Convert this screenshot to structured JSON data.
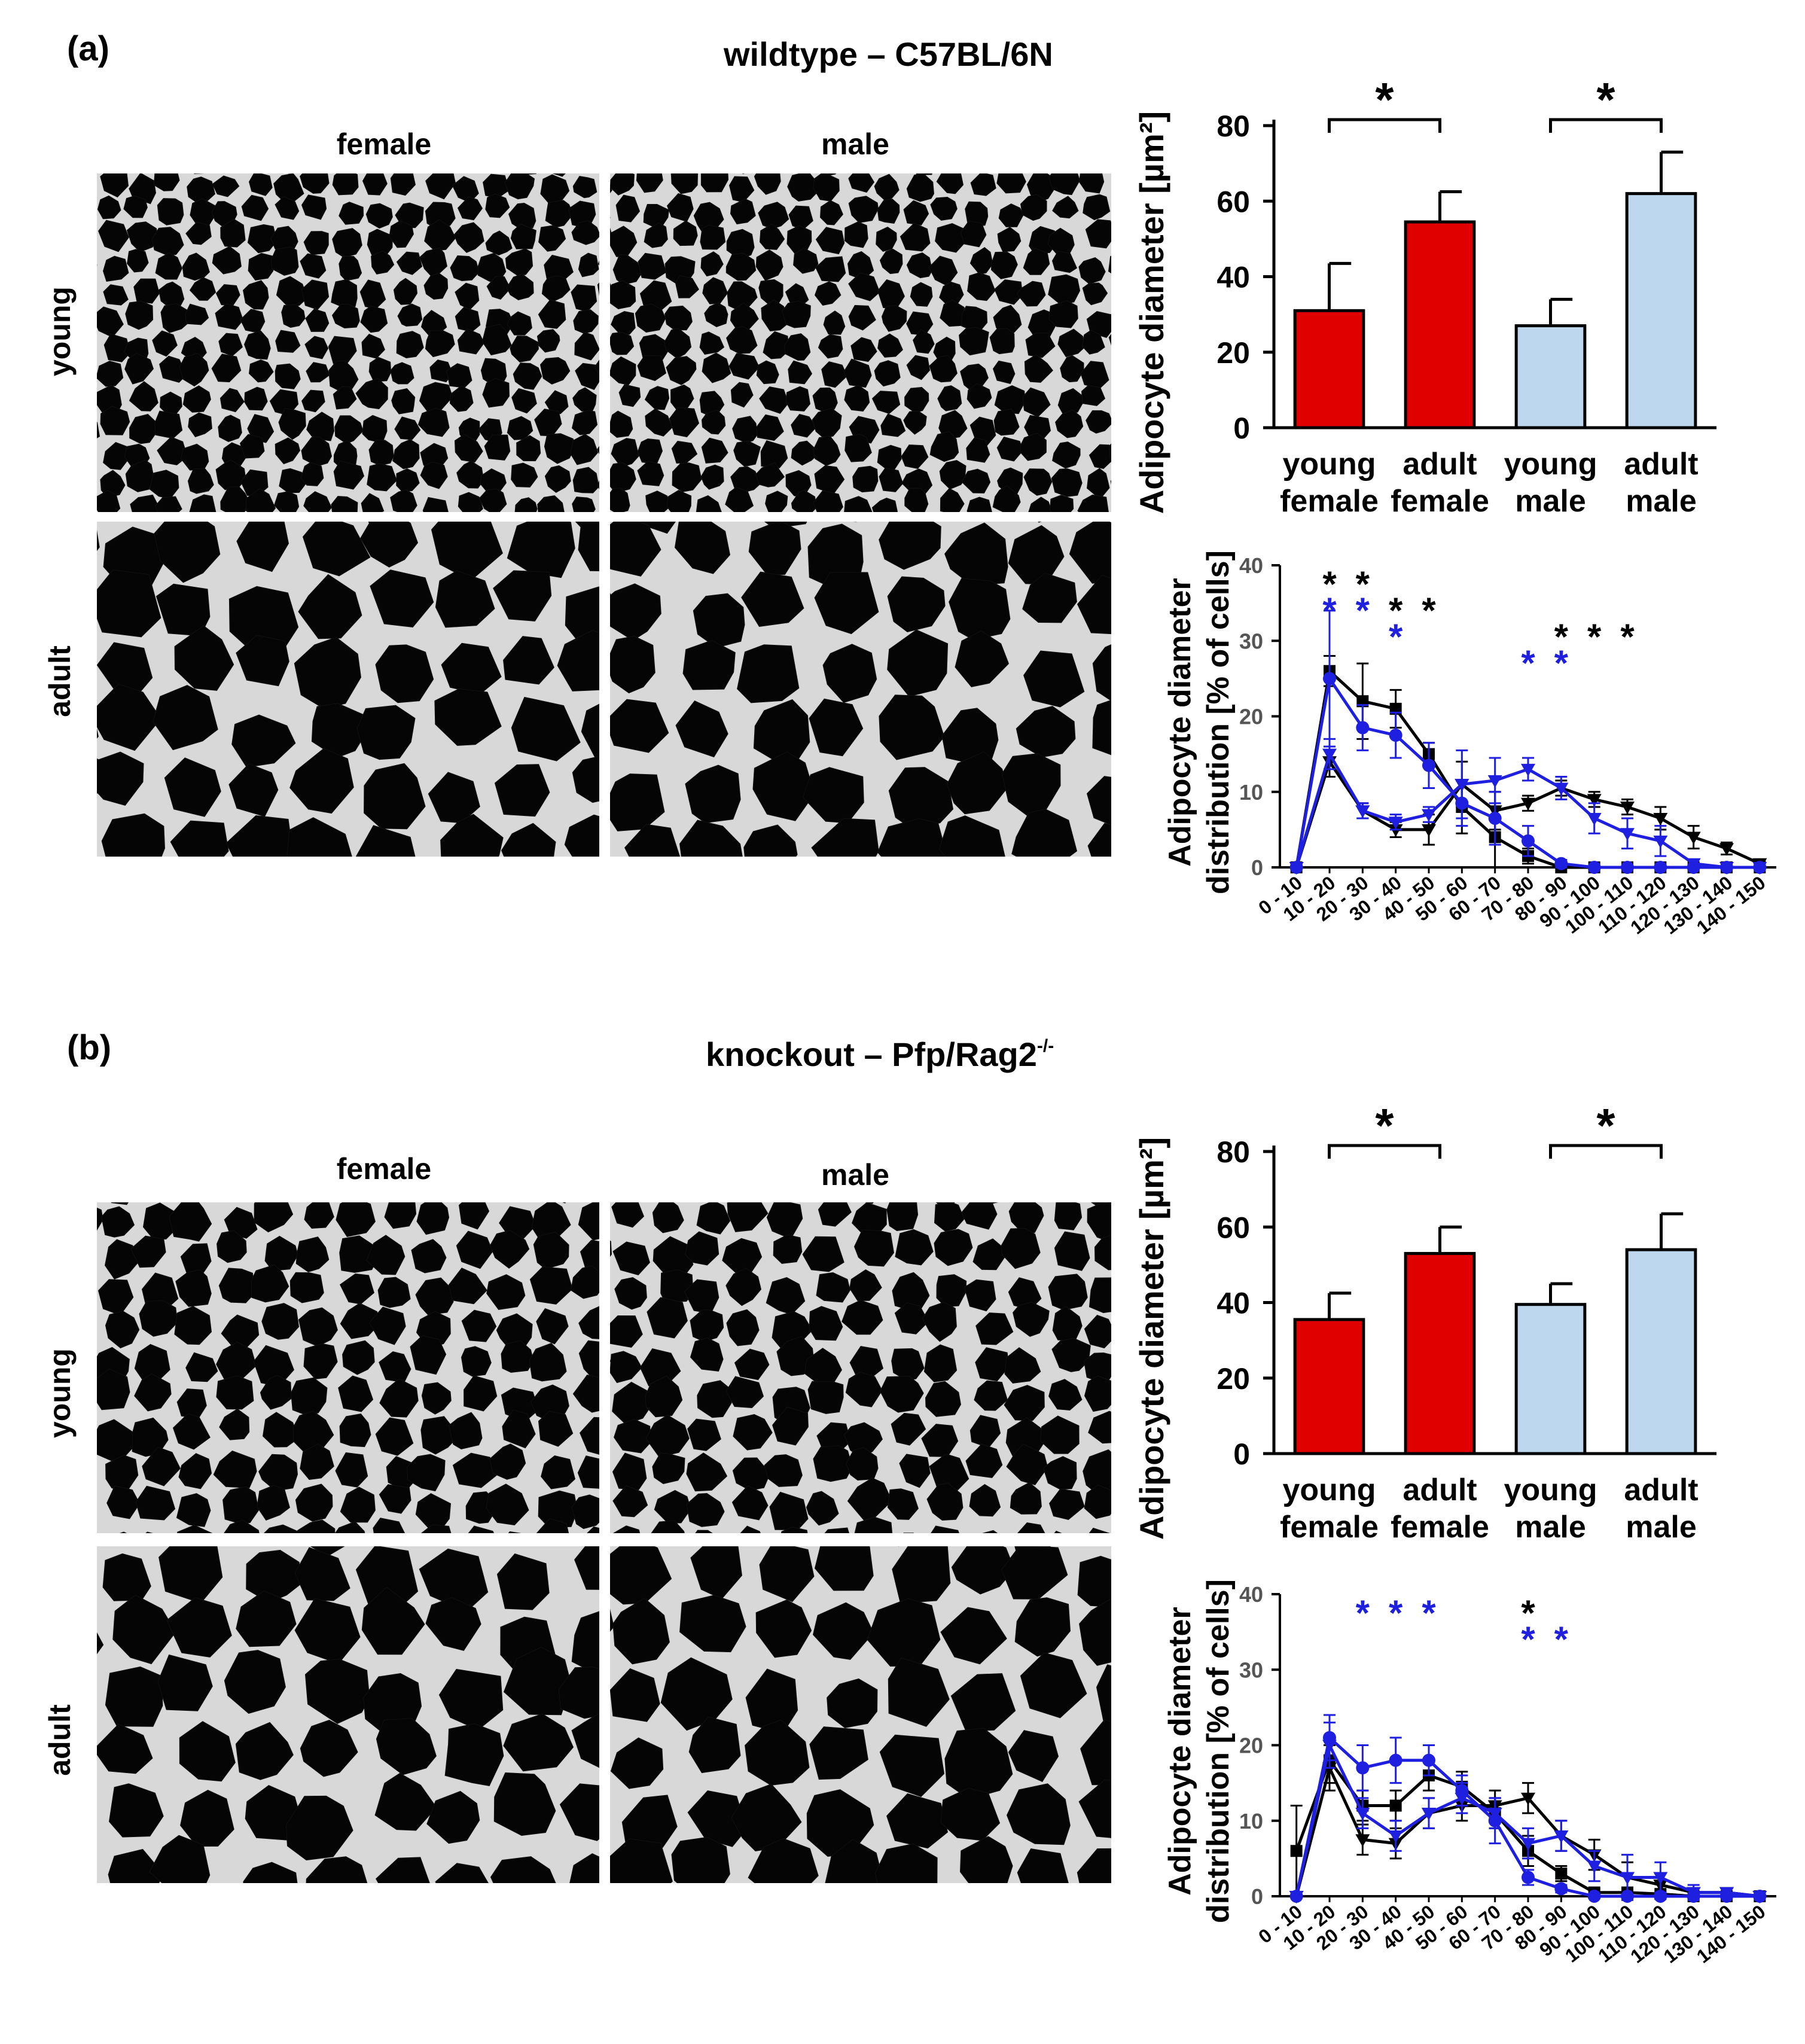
{
  "panel_a": {
    "label": "(a)",
    "title": "wildtype – C57BL/6N",
    "col_labels": [
      "female",
      "male"
    ],
    "row_labels": [
      "young",
      "adult"
    ]
  },
  "panel_b": {
    "label": "(b)",
    "title_main": "knockout – Pfp/Rag2",
    "title_sup": "-/-",
    "col_labels": [
      "female",
      "male"
    ],
    "row_labels": [
      "young",
      "adult"
    ]
  },
  "colors": {
    "female_bar": "#e00000",
    "male_bar": "#bdd7ee",
    "series_black": "#000000",
    "series_blue": "#1f1fe0"
  },
  "chart_data": [
    {
      "id": "a-bar",
      "type": "bar",
      "ylabel": "Adipocyte diameter  [µm²]",
      "ylim": [
        0,
        80
      ],
      "yticks": [
        0,
        20,
        40,
        60,
        80
      ],
      "categories": [
        "young female",
        "adult female",
        "young male",
        "adult male"
      ],
      "category_lines": [
        [
          "young",
          "female"
        ],
        [
          "adult",
          "female"
        ],
        [
          "young",
          "male"
        ],
        [
          "adult",
          "male"
        ]
      ],
      "values": [
        31,
        54.5,
        27,
        62
      ],
      "errors": [
        12.5,
        8,
        7,
        11
      ],
      "bar_colors": [
        "female",
        "female",
        "male",
        "male"
      ],
      "significance": [
        {
          "between": [
            0,
            1
          ],
          "label": "*"
        },
        {
          "between": [
            2,
            3
          ],
          "label": "*"
        }
      ]
    },
    {
      "id": "a-line",
      "type": "line",
      "ylabel_lines": [
        "Adipocyte diameter",
        "distribution [% of cells]"
      ],
      "ylim": [
        0,
        40
      ],
      "yticks": [
        0,
        10,
        20,
        30,
        40
      ],
      "categories": [
        "0 - 10",
        "10 - 20",
        "20 - 30",
        "30 - 40",
        "40 - 50",
        "50 - 60",
        "60 - 70",
        "70 - 80",
        "80 - 90",
        "90 - 100",
        "100 - 110",
        "110 - 120",
        "120 - 130",
        "130 - 140",
        "140 - 150"
      ],
      "series": [
        {
          "name": "black-square",
          "color": "black",
          "marker": "square",
          "values": [
            0,
            26,
            22,
            21,
            15,
            8,
            4,
            1.5,
            0,
            0,
            0,
            0,
            0,
            0,
            0
          ],
          "errors": [
            0,
            2,
            5,
            2.5,
            1.5,
            3.5,
            4,
            1,
            0,
            0,
            0,
            0,
            0,
            0,
            0
          ]
        },
        {
          "name": "black-triangle",
          "color": "black",
          "marker": "triangle",
          "values": [
            0,
            14,
            7.5,
            5,
            5,
            11,
            7.5,
            8.5,
            10.5,
            9,
            8,
            6.5,
            4,
            2.5,
            0.5
          ],
          "errors": [
            0,
            2,
            1,
            1,
            2,
            3,
            2.5,
            1,
            1,
            1,
            1,
            1.5,
            1.5,
            0.8,
            0.3
          ]
        },
        {
          "name": "blue-circle",
          "color": "blue",
          "marker": "circle",
          "values": [
            0,
            25,
            18.5,
            17.5,
            13.5,
            8.5,
            6.5,
            3.5,
            0.5,
            0,
            0,
            0,
            0,
            0,
            0
          ],
          "errors": [
            0,
            9,
            3,
            3,
            3,
            3,
            3.5,
            2,
            0.5,
            0,
            0,
            0,
            0,
            0,
            0
          ]
        },
        {
          "name": "blue-triangle",
          "color": "blue",
          "marker": "triangle",
          "values": [
            0,
            15,
            7.5,
            6,
            7,
            11,
            11.5,
            13,
            10.5,
            6.5,
            4.5,
            3.5,
            0.5,
            0,
            0
          ],
          "errors": [
            0,
            2,
            1,
            1,
            1,
            4.5,
            3,
            1.5,
            1.5,
            2,
            2,
            2,
            0.5,
            0,
            0
          ]
        }
      ],
      "annotations": [
        {
          "x": 1,
          "row": 0,
          "color": "black",
          "text": "*"
        },
        {
          "x": 2,
          "row": 0,
          "color": "black",
          "text": "*"
        },
        {
          "x": 3,
          "row": 1,
          "color": "black",
          "text": "*"
        },
        {
          "x": 4,
          "row": 1,
          "color": "black",
          "text": "*"
        },
        {
          "x": 8,
          "row": 2,
          "color": "black",
          "text": "*"
        },
        {
          "x": 9,
          "row": 2,
          "color": "black",
          "text": "*"
        },
        {
          "x": 10,
          "row": 2,
          "color": "black",
          "text": "*"
        },
        {
          "x": 1,
          "row": 1,
          "color": "blue",
          "text": "*"
        },
        {
          "x": 2,
          "row": 1,
          "color": "blue",
          "text": "*"
        },
        {
          "x": 3,
          "row": 2,
          "color": "blue",
          "text": "*"
        },
        {
          "x": 7,
          "row": 3,
          "color": "blue",
          "text": "*"
        },
        {
          "x": 8,
          "row": 3,
          "color": "blue",
          "text": "*"
        }
      ]
    },
    {
      "id": "b-bar",
      "type": "bar",
      "ylabel": "Adipocyte diameter  [µm²]",
      "ylim": [
        0,
        80
      ],
      "yticks": [
        0,
        20,
        40,
        60,
        80
      ],
      "categories": [
        "young female",
        "adult female",
        "young male",
        "adult male"
      ],
      "category_lines": [
        [
          "young",
          "female"
        ],
        [
          "adult",
          "female"
        ],
        [
          "young",
          "male"
        ],
        [
          "adult",
          "male"
        ]
      ],
      "values": [
        35.5,
        53,
        39.5,
        54
      ],
      "errors": [
        7,
        7,
        5.5,
        9.5
      ],
      "bar_colors": [
        "female",
        "female",
        "male",
        "male"
      ],
      "significance": [
        {
          "between": [
            0,
            1
          ],
          "label": "*"
        },
        {
          "between": [
            2,
            3
          ],
          "label": "*"
        }
      ]
    },
    {
      "id": "b-line",
      "type": "line",
      "ylabel_lines": [
        "Adipocyte diameter",
        "distribution [% of cells]"
      ],
      "ylim": [
        0,
        40
      ],
      "yticks": [
        0,
        10,
        20,
        30,
        40
      ],
      "categories": [
        "0 - 10",
        "10 - 20",
        "20 - 30",
        "30 - 40",
        "40 - 50",
        "50 - 60",
        "60 - 70",
        "70 - 80",
        "80 - 90",
        "90 - 100",
        "100 - 110",
        "110 - 120",
        "120 - 130",
        "130 - 140",
        "140 - 150"
      ],
      "series": [
        {
          "name": "black-square",
          "color": "black",
          "marker": "square",
          "values": [
            6,
            18,
            12,
            12,
            16,
            14.5,
            11,
            6,
            3,
            0.5,
            0.5,
            0.3,
            0,
            0,
            0
          ],
          "errors": [
            6,
            3,
            2,
            2,
            2,
            2,
            2,
            2,
            1,
            0.5,
            0.5,
            0.3,
            0,
            0,
            0
          ]
        },
        {
          "name": "black-triangle",
          "color": "black",
          "marker": "triangle",
          "values": [
            0,
            17,
            7.5,
            7,
            11,
            12,
            12,
            13,
            8,
            5.5,
            2.5,
            1.5,
            0.5,
            0.5,
            0
          ],
          "errors": [
            0,
            3,
            2,
            2,
            2,
            2,
            2,
            2,
            2,
            2,
            2,
            1.5,
            0.5,
            0.5,
            0
          ]
        },
        {
          "name": "blue-circle",
          "color": "blue",
          "marker": "circle",
          "values": [
            0,
            21,
            17,
            18,
            18,
            14,
            10,
            2.5,
            1,
            0,
            0,
            0,
            0,
            0,
            0
          ],
          "errors": [
            0,
            3,
            3,
            3,
            2,
            2,
            3,
            1,
            0.5,
            0,
            0,
            0,
            0,
            0,
            0
          ]
        },
        {
          "name": "blue-triangle",
          "color": "blue",
          "marker": "triangle",
          "values": [
            0,
            20,
            11,
            8,
            11,
            13,
            11,
            7,
            8,
            4,
            2.5,
            2.5,
            0.5,
            0.5,
            0
          ],
          "errors": [
            0,
            3,
            2,
            2,
            2,
            2,
            2,
            2,
            2,
            2,
            3,
            2,
            1,
            0.5,
            0
          ]
        }
      ],
      "annotations": [
        {
          "x": 2,
          "row": 0,
          "color": "blue",
          "text": "*"
        },
        {
          "x": 3,
          "row": 0,
          "color": "blue",
          "text": "*"
        },
        {
          "x": 4,
          "row": 0,
          "color": "blue",
          "text": "*"
        },
        {
          "x": 7,
          "row": 0,
          "color": "black",
          "text": "*"
        },
        {
          "x": 7,
          "row": 1,
          "color": "blue",
          "text": "*"
        },
        {
          "x": 8,
          "row": 1,
          "color": "blue",
          "text": "*"
        }
      ]
    }
  ]
}
